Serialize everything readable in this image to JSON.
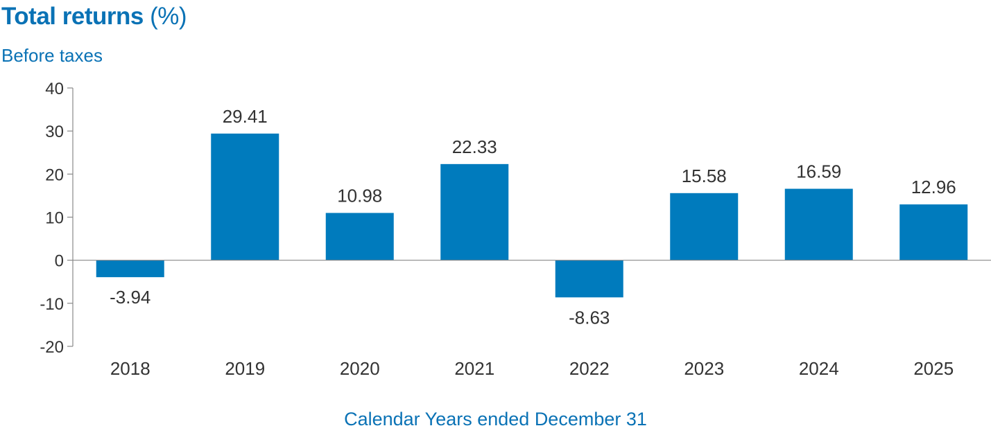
{
  "chart_data": {
    "type": "bar",
    "title": "Total returns",
    "title_unit": "(%)",
    "subtitle": "Before taxes",
    "xlabel": "Calendar Years ended December 31",
    "ylabel": "",
    "categories": [
      "2018",
      "2019",
      "2020",
      "2021",
      "2022",
      "2023",
      "2024",
      "2025"
    ],
    "values": [
      -3.94,
      29.41,
      10.98,
      22.33,
      -8.63,
      15.58,
      16.59,
      12.96
    ],
    "value_labels": [
      "-3.94",
      "29.41",
      "10.98",
      "22.33",
      "-8.63",
      "15.58",
      "16.59",
      "12.96"
    ],
    "ylim": [
      -20,
      40
    ],
    "yticks": [
      40,
      30,
      20,
      10,
      0,
      -10,
      -20
    ],
    "ytick_labels": [
      "40",
      "30",
      "20",
      "10",
      "0",
      "-10",
      "-20"
    ],
    "grid": false,
    "legend": "none",
    "colors": {
      "bar": "#007bbd",
      "title": "#0a72b5",
      "axis": "#888888",
      "text": "#333333"
    }
  }
}
